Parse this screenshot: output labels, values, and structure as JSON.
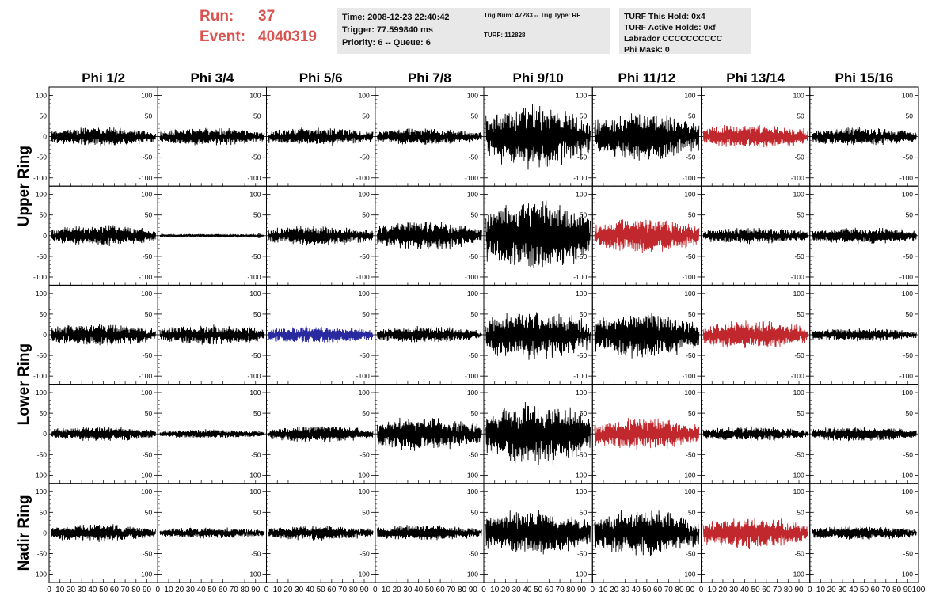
{
  "header": {
    "run_label": "Run:",
    "run_value": "37",
    "event_label": "Event:",
    "event_value": "4040319"
  },
  "info_time": {
    "time": "Time: 2008-12-23 22:40:42",
    "trigger": "Trigger: 77.599840 ms",
    "priority": "Priority: 6 -- Queue: 6"
  },
  "info_trig": {
    "trig": "Trig Num: 47283 -- Trig Type: RF",
    "turf": "TURF: 112828"
  },
  "info_turf": {
    "this_hold": "TURF This Hold: 0x4",
    "active_holds": "TURF Active Holds: 0xf",
    "labrador": "Labrador CCCCCCCCCC",
    "phi_mask": "Phi Mask: 0"
  },
  "colors": {
    "run_text": "#d9534f",
    "trace_default": "#000000",
    "trace_red": "#c0282d",
    "trace_blue": "#2a2aa0"
  },
  "chart_data": {
    "type": "line",
    "columns": [
      "Phi 1/2",
      "Phi 3/4",
      "Phi 5/6",
      "Phi 7/8",
      "Phi 9/10",
      "Phi 11/12",
      "Phi 13/14",
      "Phi 15/16"
    ],
    "rows": [
      "Upper Ring",
      "Upper Ring",
      "Lower Ring",
      "Lower Ring",
      "Nadir Ring"
    ],
    "row_labels": [
      {
        "text": "Upper Ring"
      },
      {
        "text": "Lower Ring"
      },
      {
        "text": "Nadir Ring"
      }
    ],
    "xlim": [
      0,
      100
    ],
    "ylim": [
      -120,
      120
    ],
    "x_tick_labels": [
      "0",
      "10",
      "20",
      "30",
      "40",
      "50",
      "60",
      "70",
      "80",
      "90",
      "100"
    ],
    "y_tick_labels": [
      "100",
      "50",
      "0",
      "-50",
      "-100"
    ],
    "grid": false,
    "amplitudes": [
      [
        22,
        20,
        20,
        18,
        70,
        55,
        28,
        20
      ],
      [
        24,
        4,
        22,
        32,
        80,
        38,
        18,
        18
      ],
      [
        24,
        22,
        20,
        18,
        55,
        52,
        32,
        14
      ],
      [
        16,
        10,
        18,
        38,
        70,
        35,
        16,
        16
      ],
      [
        20,
        12,
        16,
        18,
        50,
        52,
        35,
        16
      ]
    ],
    "trace_colors": [
      [
        "default",
        "default",
        "default",
        "default",
        "default",
        "default",
        "red",
        "default"
      ],
      [
        "default",
        "default",
        "default",
        "default",
        "default",
        "red",
        "default",
        "default"
      ],
      [
        "default",
        "default",
        "blue",
        "default",
        "default",
        "default",
        "red",
        "default"
      ],
      [
        "default",
        "default",
        "default",
        "default",
        "default",
        "red",
        "default",
        "default"
      ],
      [
        "default",
        "default",
        "default",
        "default",
        "default",
        "default",
        "red",
        "default"
      ]
    ]
  }
}
